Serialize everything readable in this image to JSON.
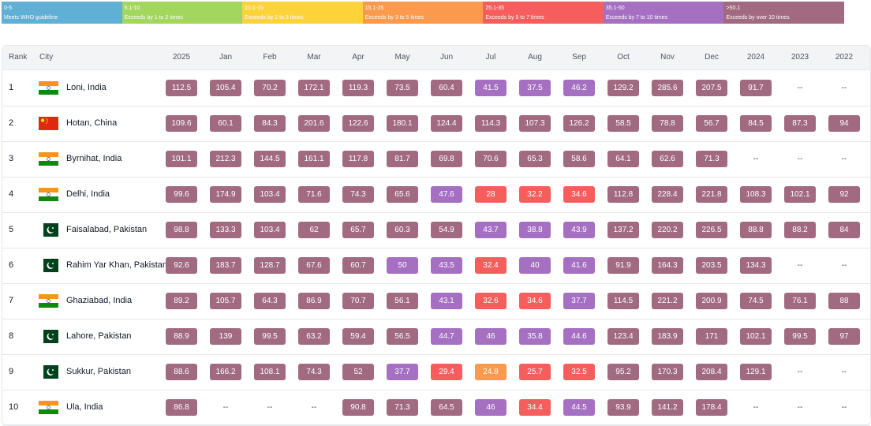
{
  "legend": [
    {
      "range": "0-5",
      "label": "Meets WHO guideline",
      "from": 0,
      "color": "#5fb0d4"
    },
    {
      "range": "5.1-10",
      "label": "Exceeds by 1 to 2 times",
      "from": 5.1,
      "color": "#a3d65c"
    },
    {
      "range": "10.1-15",
      "label": "Exceeds by 2 to 3 times",
      "from": 10.1,
      "color": "#fdd33c"
    },
    {
      "range": "15.1-25",
      "label": "Exceeds by 3 to 5 times",
      "from": 15.1,
      "color": "#fb9a4c"
    },
    {
      "range": "25.1-35",
      "label": "Exceeds by 5 to 7 times",
      "from": 25.1,
      "color": "#f65e5e"
    },
    {
      "range": "35.1-50",
      "label": "Exceeds by 7 to 10 times",
      "from": 35.1,
      "color": "#a56fc2"
    },
    {
      "range": ">50.1",
      "label": "Exceeds by over 10 times",
      "from": 50.1,
      "color": "#a16a80"
    }
  ],
  "table": {
    "columns": [
      "Rank",
      "City",
      "2025",
      "Jan",
      "Feb",
      "Mar",
      "Apr",
      "May",
      "Jun",
      "Jul",
      "Aug",
      "Sep",
      "Oct",
      "Nov",
      "Dec",
      "2024",
      "2023",
      "2022"
    ],
    "rows": [
      [
        1,
        "Loni, India",
        112.5,
        105.4,
        70.2,
        172.1,
        119.3,
        73.5,
        60.4,
        41.5,
        37.5,
        46.2,
        129.2,
        285.6,
        207.5,
        91.7,
        "--",
        "--"
      ],
      [
        2,
        "Hotan, China",
        109.6,
        60.1,
        84.3,
        201.6,
        122.6,
        180.1,
        124.4,
        114.3,
        107.3,
        126.2,
        58.5,
        78.8,
        56.7,
        84.5,
        87.3,
        94
      ],
      [
        3,
        "Byrnihat, India",
        101.1,
        212.3,
        144.5,
        161.1,
        117.8,
        81.7,
        69.8,
        70.6,
        65.3,
        58.6,
        64.1,
        62.6,
        71.3,
        "--",
        "--",
        "--"
      ],
      [
        4,
        "Delhi, India",
        99.6,
        174.9,
        103.4,
        71.6,
        74.3,
        65.6,
        47.6,
        28,
        32.2,
        34.6,
        112.8,
        228.4,
        221.8,
        108.3,
        102.1,
        92
      ],
      [
        5,
        "Faisalabad, Pakistan",
        98.8,
        133.3,
        103.4,
        62,
        65.7,
        60.3,
        54.9,
        43.7,
        38.8,
        43.9,
        137.2,
        220.2,
        226.5,
        88.8,
        88.2,
        84
      ],
      [
        6,
        "Rahim Yar Khan, Pakistan",
        92.6,
        183.7,
        128.7,
        67.6,
        60.7,
        50,
        43.5,
        32.4,
        40,
        41.6,
        91.9,
        164.3,
        203.5,
        134.3,
        "--",
        "--"
      ],
      [
        7,
        "Ghaziabad, India",
        89.2,
        105.7,
        64.3,
        86.9,
        70.7,
        56.1,
        43.1,
        32.6,
        34.6,
        37.7,
        114.5,
        221.2,
        200.9,
        74.5,
        76.1,
        88
      ],
      [
        8,
        "Lahore, Pakistan",
        88.9,
        139,
        99.5,
        63.2,
        59.4,
        56.5,
        44.7,
        46,
        35.8,
        44.6,
        123.4,
        183.9,
        171,
        102.1,
        99.5,
        97
      ],
      [
        9,
        "Sukkur, Pakistan",
        88.6,
        166.2,
        108.1,
        74.3,
        52,
        37.7,
        29.4,
        24.8,
        25.7,
        32.5,
        95.2,
        170.3,
        208.4,
        129.1,
        "--",
        "--"
      ],
      [
        10,
        "Ula, India",
        86.8,
        "--",
        "--",
        "--",
        90.8,
        71.3,
        64.5,
        46,
        34.4,
        44.5,
        93.9,
        141.2,
        178.4,
        "--",
        "--",
        "--"
      ]
    ]
  }
}
